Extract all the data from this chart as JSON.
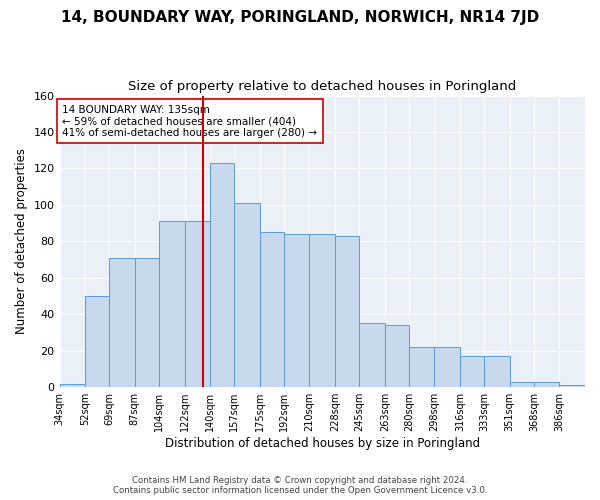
{
  "title": "14, BOUNDARY WAY, PORINGLAND, NORWICH, NR14 7JD",
  "subtitle": "Size of property relative to detached houses in Poringland",
  "xlabel": "Distribution of detached houses by size in Poringland",
  "ylabel": "Number of detached properties",
  "bin_labels": [
    "34sqm",
    "52sqm",
    "69sqm",
    "87sqm",
    "104sqm",
    "122sqm",
    "140sqm",
    "157sqm",
    "175sqm",
    "192sqm",
    "210sqm",
    "228sqm",
    "245sqm",
    "263sqm",
    "280sqm",
    "298sqm",
    "316sqm",
    "333sqm",
    "351sqm",
    "368sqm",
    "386sqm"
  ],
  "bin_edges": [
    34,
    52,
    69,
    87,
    104,
    122,
    140,
    157,
    175,
    192,
    210,
    228,
    245,
    263,
    280,
    298,
    316,
    333,
    351,
    368,
    386,
    404
  ],
  "heights": [
    2,
    50,
    71,
    71,
    91,
    91,
    123,
    101,
    85,
    84,
    84,
    83,
    35,
    34,
    22,
    22,
    17,
    17,
    3,
    3,
    1
  ],
  "bar_color": "#c8d9ee",
  "bar_edge_color": "#5b9bd5",
  "vline_x": 135,
  "vline_color": "#cc0000",
  "annotation_text": "14 BOUNDARY WAY: 135sqm\n← 59% of detached houses are smaller (404)\n41% of semi-detached houses are larger (280) →",
  "annotation_box_color": "white",
  "annotation_box_edge": "#cc0000",
  "ylim": [
    0,
    160
  ],
  "yticks": [
    0,
    20,
    40,
    60,
    80,
    100,
    120,
    140,
    160
  ],
  "footer": "Contains HM Land Registry data © Crown copyright and database right 2024.\nContains public sector information licensed under the Open Government Licence v3.0.",
  "bg_color": "#eaf0f8",
  "grid_color": "white",
  "title_fontsize": 11,
  "subtitle_fontsize": 9.5,
  "ylabel_fontsize": 8.5,
  "xlabel_fontsize": 8.5,
  "tick_fontsize": 7,
  "footer_fontsize": 6.2
}
